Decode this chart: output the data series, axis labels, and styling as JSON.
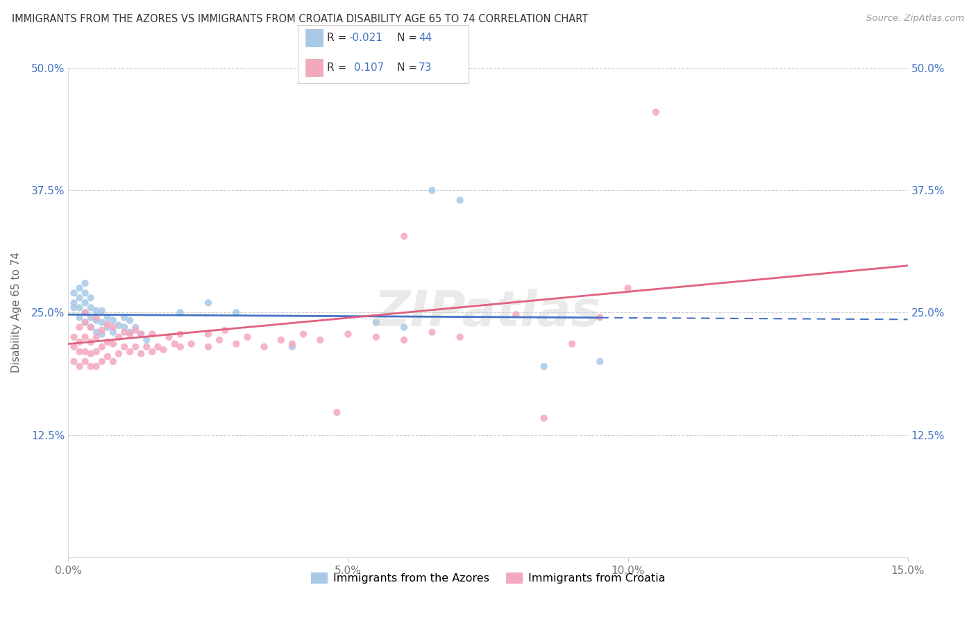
{
  "title": "IMMIGRANTS FROM THE AZORES VS IMMIGRANTS FROM CROATIA DISABILITY AGE 65 TO 74 CORRELATION CHART",
  "source": "Source: ZipAtlas.com",
  "ylabel": "Disability Age 65 to 74",
  "xmin": 0.0,
  "xmax": 0.15,
  "ymin": 0.0,
  "ymax": 0.5,
  "yticks": [
    0.0,
    0.125,
    0.25,
    0.375,
    0.5
  ],
  "ytick_labels": [
    "",
    "12.5%",
    "25.0%",
    "37.5%",
    "50.0%"
  ],
  "xticks": [
    0.0,
    0.05,
    0.1,
    0.15
  ],
  "xtick_labels": [
    "0.0%",
    "5.0%",
    "10.0%",
    "15.0%"
  ],
  "series1_label": "Immigrants from the Azores",
  "series2_label": "Immigrants from Croatia",
  "series1_color": "#a8c8e8",
  "series2_color": "#f4a8be",
  "series1_line_color": "#4472c4",
  "series2_line_color": "#e06080",
  "legend_color": "#4472c4",
  "series1_R": -0.021,
  "series1_N": 44,
  "series2_R": 0.107,
  "series2_N": 73,
  "watermark": "ZIPatlas",
  "azores_x": [
    0.001,
    0.001,
    0.001,
    0.002,
    0.002,
    0.002,
    0.002,
    0.003,
    0.003,
    0.003,
    0.003,
    0.003,
    0.004,
    0.004,
    0.004,
    0.004,
    0.005,
    0.005,
    0.005,
    0.006,
    0.006,
    0.006,
    0.007,
    0.007,
    0.008,
    0.008,
    0.009,
    0.01,
    0.01,
    0.011,
    0.011,
    0.012,
    0.013,
    0.014,
    0.02,
    0.025,
    0.03,
    0.04,
    0.055,
    0.06,
    0.065,
    0.07,
    0.085,
    0.095
  ],
  "azores_y": [
    0.255,
    0.26,
    0.27,
    0.245,
    0.255,
    0.265,
    0.275,
    0.24,
    0.25,
    0.26,
    0.27,
    0.28,
    0.235,
    0.245,
    0.255,
    0.265,
    0.23,
    0.242,
    0.252,
    0.228,
    0.24,
    0.252,
    0.235,
    0.245,
    0.23,
    0.242,
    0.237,
    0.235,
    0.245,
    0.23,
    0.242,
    0.235,
    0.228,
    0.222,
    0.25,
    0.26,
    0.25,
    0.215,
    0.24,
    0.235,
    0.375,
    0.365,
    0.195,
    0.2
  ],
  "croatia_x": [
    0.001,
    0.001,
    0.001,
    0.002,
    0.002,
    0.002,
    0.002,
    0.003,
    0.003,
    0.003,
    0.003,
    0.003,
    0.004,
    0.004,
    0.004,
    0.004,
    0.005,
    0.005,
    0.005,
    0.005,
    0.006,
    0.006,
    0.006,
    0.007,
    0.007,
    0.007,
    0.008,
    0.008,
    0.008,
    0.009,
    0.009,
    0.01,
    0.01,
    0.011,
    0.011,
    0.012,
    0.012,
    0.013,
    0.013,
    0.014,
    0.015,
    0.015,
    0.016,
    0.017,
    0.018,
    0.019,
    0.02,
    0.02,
    0.022,
    0.025,
    0.025,
    0.027,
    0.028,
    0.03,
    0.032,
    0.035,
    0.038,
    0.04,
    0.042,
    0.045,
    0.048,
    0.05,
    0.055,
    0.06,
    0.065,
    0.07,
    0.08,
    0.085,
    0.09,
    0.095,
    0.06,
    0.1,
    0.105
  ],
  "croatia_y": [
    0.2,
    0.215,
    0.225,
    0.195,
    0.21,
    0.22,
    0.235,
    0.2,
    0.21,
    0.225,
    0.24,
    0.25,
    0.195,
    0.208,
    0.22,
    0.235,
    0.195,
    0.21,
    0.225,
    0.245,
    0.2,
    0.215,
    0.232,
    0.205,
    0.22,
    0.238,
    0.2,
    0.218,
    0.235,
    0.208,
    0.225,
    0.215,
    0.23,
    0.21,
    0.228,
    0.215,
    0.232,
    0.208,
    0.228,
    0.215,
    0.21,
    0.228,
    0.215,
    0.212,
    0.225,
    0.218,
    0.215,
    0.228,
    0.218,
    0.215,
    0.228,
    0.222,
    0.232,
    0.218,
    0.225,
    0.215,
    0.222,
    0.218,
    0.228,
    0.222,
    0.148,
    0.228,
    0.225,
    0.222,
    0.23,
    0.225,
    0.248,
    0.142,
    0.218,
    0.245,
    0.328,
    0.275,
    0.455
  ],
  "trend_az_x0": 0.0,
  "trend_az_y0": 0.248,
  "trend_az_x1": 0.15,
  "trend_az_y1": 0.243,
  "trend_az_solid_end": 0.095,
  "trend_cr_x0": 0.0,
  "trend_cr_y0": 0.218,
  "trend_cr_x1": 0.15,
  "trend_cr_y1": 0.298
}
